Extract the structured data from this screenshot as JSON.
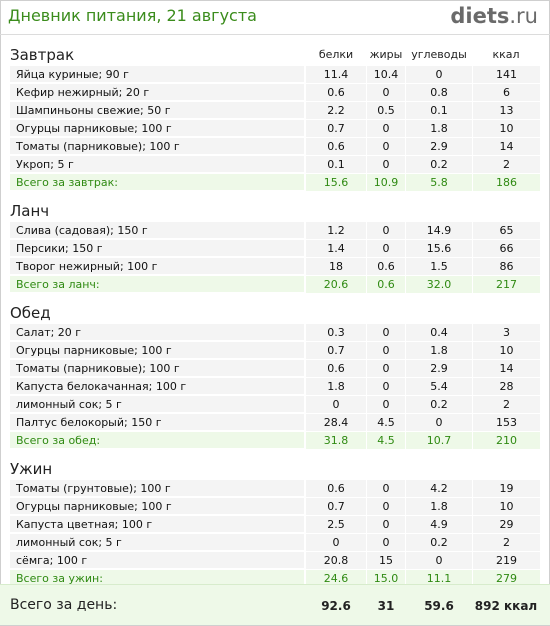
{
  "header": {
    "title": "Дневник питания, 21 августа",
    "logo_main": "diets",
    "logo_suffix": ".ru"
  },
  "columns": [
    "белки",
    "жиры",
    "углеводы",
    "ккал"
  ],
  "sections": [
    {
      "name": "Завтрак",
      "items": [
        {
          "food": "Яйца куриные; 90 г",
          "p": "11.4",
          "f": "10.4",
          "c": "0",
          "k": "141"
        },
        {
          "food": "Кефир нежирный; 20 г",
          "p": "0.6",
          "f": "0",
          "c": "0.8",
          "k": "6"
        },
        {
          "food": "Шампиньоны свежие; 50 г",
          "p": "2.2",
          "f": "0.5",
          "c": "0.1",
          "k": "13"
        },
        {
          "food": "Огурцы парниковые; 100 г",
          "p": "0.7",
          "f": "0",
          "c": "1.8",
          "k": "10"
        },
        {
          "food": "Томаты (парниковые); 100 г",
          "p": "0.6",
          "f": "0",
          "c": "2.9",
          "k": "14"
        },
        {
          "food": "Укроп; 5 г",
          "p": "0.1",
          "f": "0",
          "c": "0.2",
          "k": "2"
        }
      ],
      "total": {
        "label": "Всего за завтрак:",
        "p": "15.6",
        "f": "10.9",
        "c": "5.8",
        "k": "186"
      }
    },
    {
      "name": "Ланч",
      "items": [
        {
          "food": "Слива (садовая); 150 г",
          "p": "1.2",
          "f": "0",
          "c": "14.9",
          "k": "65"
        },
        {
          "food": "Персики; 150 г",
          "p": "1.4",
          "f": "0",
          "c": "15.6",
          "k": "66"
        },
        {
          "food": "Творог нежирный; 100 г",
          "p": "18",
          "f": "0.6",
          "c": "1.5",
          "k": "86"
        }
      ],
      "total": {
        "label": "Всего за ланч:",
        "p": "20.6",
        "f": "0.6",
        "c": "32.0",
        "k": "217"
      }
    },
    {
      "name": "Обед",
      "items": [
        {
          "food": "Салат; 20 г",
          "p": "0.3",
          "f": "0",
          "c": "0.4",
          "k": "3"
        },
        {
          "food": "Огурцы парниковые; 100 г",
          "p": "0.7",
          "f": "0",
          "c": "1.8",
          "k": "10"
        },
        {
          "food": "Томаты (парниковые); 100 г",
          "p": "0.6",
          "f": "0",
          "c": "2.9",
          "k": "14"
        },
        {
          "food": "Капуста белокачанная; 100 г",
          "p": "1.8",
          "f": "0",
          "c": "5.4",
          "k": "28"
        },
        {
          "food": "лимонный сок; 5 г",
          "p": "0",
          "f": "0",
          "c": "0.2",
          "k": "2"
        },
        {
          "food": "Палтус белокорый; 150 г",
          "p": "28.4",
          "f": "4.5",
          "c": "0",
          "k": "153"
        }
      ],
      "total": {
        "label": "Всего за обед:",
        "p": "31.8",
        "f": "4.5",
        "c": "10.7",
        "k": "210"
      }
    },
    {
      "name": "Ужин",
      "items": [
        {
          "food": "Томаты (грунтовые); 100 г",
          "p": "0.6",
          "f": "0",
          "c": "4.2",
          "k": "19"
        },
        {
          "food": "Огурцы парниковые; 100 г",
          "p": "0.7",
          "f": "0",
          "c": "1.8",
          "k": "10"
        },
        {
          "food": "Капуста цветная; 100 г",
          "p": "2.5",
          "f": "0",
          "c": "4.9",
          "k": "29"
        },
        {
          "food": "лимонный сок; 5 г",
          "p": "0",
          "f": "0",
          "c": "0.2",
          "k": "2"
        },
        {
          "food": "сёмга; 100 г",
          "p": "20.8",
          "f": "15",
          "c": "0",
          "k": "219"
        }
      ],
      "total": {
        "label": "Всего за ужин:",
        "p": "24.6",
        "f": "15.0",
        "c": "11.1",
        "k": "279"
      }
    }
  ],
  "day_total": {
    "label": "Всего за день:",
    "p": "92.6",
    "f": "31",
    "c": "59.6",
    "k": "892 ккал"
  },
  "colors": {
    "accent_green": "#3b8c1c",
    "total_bg": "#eef9e8",
    "row_bg": "#f4f4f4"
  }
}
